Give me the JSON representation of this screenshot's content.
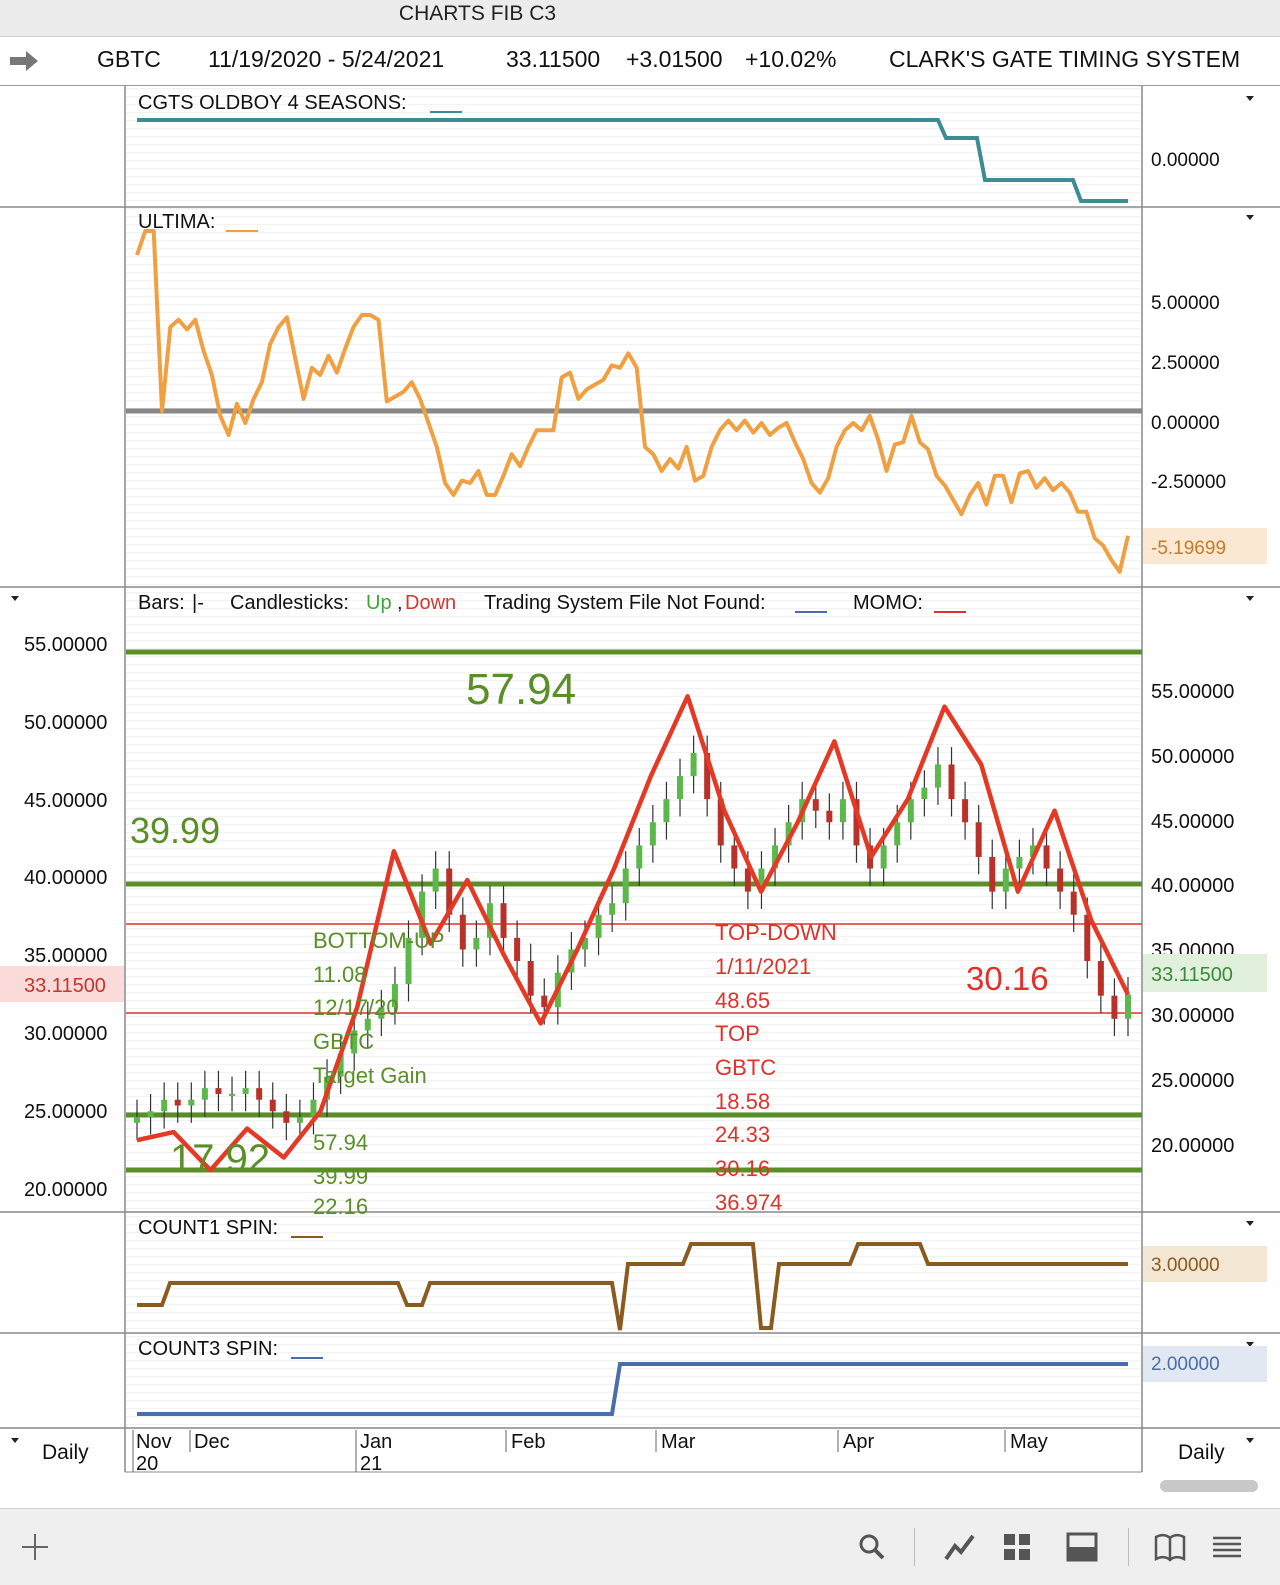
{
  "window": {
    "title": "CHARTS FIB C3"
  },
  "header": {
    "symbol": "GBTC",
    "date_range": "11/19/2020 - 5/24/2021",
    "last": "33.11500",
    "change": "+3.01500",
    "change_pct": "+10.02%",
    "system_name": "CLARK'S GATE TIMING SYSTEM"
  },
  "panels": {
    "oldboy": {
      "label": "CGTS OLDBOY 4 SEASONS:",
      "tick": "0.00000",
      "color": "#3b8d92"
    },
    "ultima": {
      "label": "ULTIMA:",
      "ticks": [
        "5.00000",
        "2.50000",
        "0.00000",
        "-2.50000"
      ],
      "last_value": "-5.19699",
      "color": "#f0a040"
    },
    "price": {
      "legend": {
        "bars": "Bars:",
        "bars_sym": "|-",
        "candles": "Candlesticks:",
        "up": "Up",
        "comma": ",",
        "down": "Down",
        "tsys": "Trading System File Not Found:",
        "momo": "MOMO:"
      },
      "left_ticks": [
        "55.00000",
        "50.00000",
        "45.00000",
        "40.00000",
        "35.00000",
        "30.00000",
        "25.00000",
        "20.00000"
      ],
      "right_ticks": [
        "55.00000",
        "50.00000",
        "45.00000",
        "40.00000",
        "35.00000",
        "30.00000",
        "25.00000",
        "20.00000"
      ],
      "last_value": "33.11500",
      "big_labels": {
        "a": "57.94",
        "b": "39.99",
        "c": "17.92",
        "d": "30.16"
      },
      "bottom_up": [
        "BOTTOM-UP",
        "11.08",
        "12/17/20",
        "GBTC",
        "Target Gain",
        "57.94",
        "39.99",
        "22.16"
      ],
      "top_down": [
        "TOP-DOWN",
        "1/11/2021",
        "48.65",
        "TOP",
        "GBTC",
        "18.58",
        "24.33",
        "30.16",
        "36.974"
      ]
    },
    "count1": {
      "label": "COUNT1 SPIN:",
      "last_value": "3.00000",
      "color": "#8a5a1e"
    },
    "count3": {
      "label": "COUNT3 SPIN:",
      "last_value": "2.00000",
      "color": "#4a6ea8"
    }
  },
  "xaxis": {
    "months": [
      "Nov",
      "Dec",
      "Jan",
      "Feb",
      "Mar",
      "Apr",
      "May"
    ],
    "years": [
      "20",
      "21"
    ],
    "period_left": "Daily",
    "period_right": "Daily"
  },
  "chart_data": [
    {
      "type": "line",
      "title": "CGTS OLDBOY 4 SEASONS",
      "series": [
        {
          "name": "CGTS OLDBOY 4 SEASONS",
          "values": [
            1,
            1,
            1,
            1,
            1,
            0,
            0,
            -1,
            -1,
            -2,
            -2
          ]
        }
      ]
    },
    {
      "type": "line",
      "title": "ULTIMA",
      "series": [
        {
          "name": "ULTIMA",
          "values": [
            6.5,
            7.5,
            7.5,
            0,
            3.5,
            3.8,
            3.4,
            3.8,
            2.5,
            1.5,
            -0.2,
            -1,
            0.3,
            -0.5,
            0.5,
            1.2,
            2.8,
            3.5,
            3.9,
            2.2,
            0.5,
            1.8,
            1.5,
            2.3,
            1.6,
            2.6,
            3.5,
            4.0,
            4.0,
            3.8,
            0.4,
            0.6,
            0.8,
            1.2,
            0.5,
            -0.5,
            -1.5,
            -3.0,
            -3.5,
            -2.9,
            -3.0,
            -2.5,
            -3.5,
            -3.5,
            -2.7,
            -1.8,
            -2.3,
            -1.5,
            -0.8,
            -0.8,
            -0.8,
            1.4,
            1.6,
            0.5,
            0.9,
            1.1,
            1.3,
            1.9,
            1.8,
            2.4,
            1.8,
            -1.5,
            -1.8,
            -2.5,
            -2.0,
            -2.4,
            -1.5,
            -2.9,
            -2.7,
            -1.5,
            -0.8,
            -0.4,
            -0.8,
            -0.4,
            -0.9,
            -0.5,
            -1.0,
            -0.7,
            -0.5,
            -1.3,
            -2.0,
            -3.0,
            -3.4,
            -2.8,
            -1.5,
            -0.8,
            -0.5,
            -0.8,
            -0.2,
            -1.2,
            -2.5,
            -1.4,
            -1.3,
            -0.2,
            -1.3,
            -1.6,
            -2.7,
            -3.1,
            -3.7,
            -4.3,
            -3.5,
            -3.0,
            -3.9,
            -2.7,
            -2.7,
            -3.8,
            -2.6,
            -2.5,
            -3.2,
            -2.8,
            -3.3,
            -3.0,
            -3.4,
            -4.2,
            -4.2,
            -5.3,
            -5.6,
            -6.2,
            -6.7,
            -5.2
          ]
        }
      ]
    },
    {
      "type": "line",
      "title": "GBTC price",
      "ylim": [
        17.5,
        60
      ],
      "series": [
        {
          "name": "Close",
          "values": [
            22.5,
            23.0,
            24.0,
            23.5,
            24.0,
            25.0,
            24.5,
            24.5,
            25.0,
            24.0,
            23.0,
            22.0,
            22.5,
            24.0,
            26.0,
            28.0,
            30.0,
            31.0,
            32.0,
            34.0,
            38.0,
            42.0,
            44.0,
            40.0,
            37.0,
            38.0,
            41.0,
            38.0,
            36.0,
            33.0,
            32.0,
            35.0,
            37.0,
            38.0,
            40.0,
            41.0,
            44.0,
            46.0,
            48.0,
            50.0,
            52.0,
            54.0,
            50.0,
            46.0,
            44.0,
            42.0,
            44.0,
            46.0,
            48.0,
            50.0,
            49.0,
            48.0,
            50.0,
            46.0,
            44.0,
            46.0,
            48.0,
            50.0,
            51.0,
            53.0,
            50.0,
            48.0,
            45.0,
            42.0,
            44.0,
            45.0,
            46.0,
            44.0,
            42.0,
            40.0,
            36.0,
            33.0,
            31.0,
            33.115
          ]
        },
        {
          "name": "MOMO",
          "values": [
            20.5,
            21.2,
            17.9,
            21.5,
            19.0,
            23.0,
            32.0,
            45.5,
            37.5,
            43.0,
            36.5,
            30.6,
            37.0,
            44.0,
            52.0,
            58.9,
            49.0,
            42.0,
            48.0,
            55.0,
            45.0,
            50.0,
            58.0,
            53.0,
            42.0,
            49.0,
            39.5,
            33.1
          ]
        }
      ],
      "levels": [
        57.94,
        39.99,
        22.16,
        36.974,
        30.16,
        17.92
      ]
    },
    {
      "type": "line",
      "title": "COUNT1 SPIN",
      "series": [
        {
          "name": "COUNT1 SPIN",
          "values": [
            1,
            2,
            2,
            2,
            1,
            2,
            2,
            0,
            3,
            3,
            4,
            4,
            0,
            3,
            3,
            4,
            4,
            3,
            3
          ]
        }
      ]
    },
    {
      "type": "line",
      "title": "COUNT3 SPIN",
      "series": [
        {
          "name": "COUNT3 SPIN",
          "values": [
            1,
            1,
            1,
            2,
            2
          ]
        }
      ]
    }
  ]
}
